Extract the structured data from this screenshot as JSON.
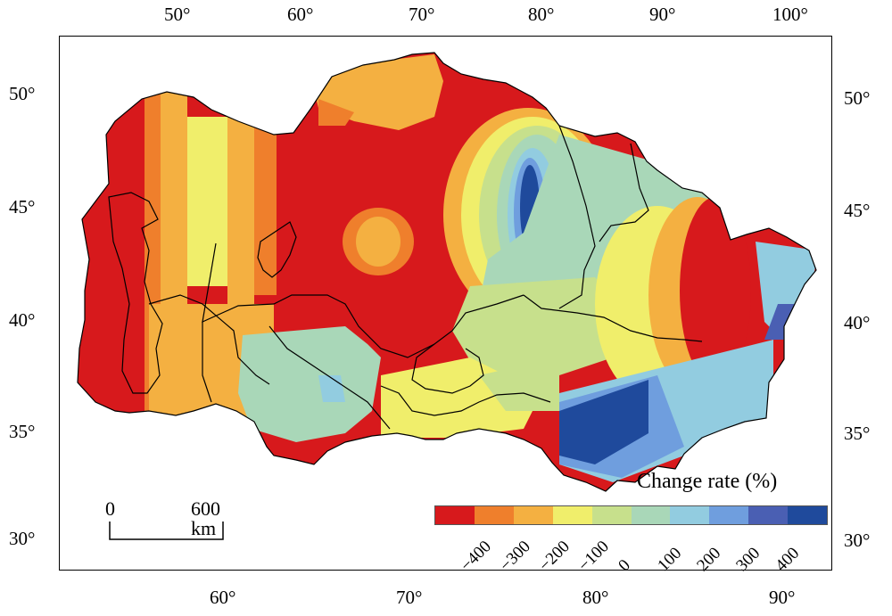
{
  "map": {
    "top_lon_labels": [
      "50°",
      "60°",
      "70°",
      "80°",
      "90°",
      "100°"
    ],
    "bottom_lon_labels": [
      "60°",
      "70°",
      "80°",
      "90°"
    ],
    "left_lat_labels": [
      "50°",
      "45°",
      "40°",
      "35°",
      "30°"
    ],
    "right_lat_labels": [
      "50°",
      "45°",
      "40°",
      "35°",
      "30°"
    ],
    "scale_bar": {
      "zero_label": "0",
      "distance_label": "600 km"
    }
  },
  "legend": {
    "title": "Change rate (%)",
    "colors": [
      "#d7191c",
      "#ef7f2c",
      "#f4b041",
      "#f0ee6b",
      "#c7e08c",
      "#a9d7b8",
      "#92cce0",
      "#6f9ede",
      "#4a5fb3",
      "#1f4a9c"
    ],
    "tick_labels": [
      "−400",
      "−300",
      "−200",
      "−100",
      "0",
      "100",
      "200",
      "300",
      "400"
    ]
  }
}
